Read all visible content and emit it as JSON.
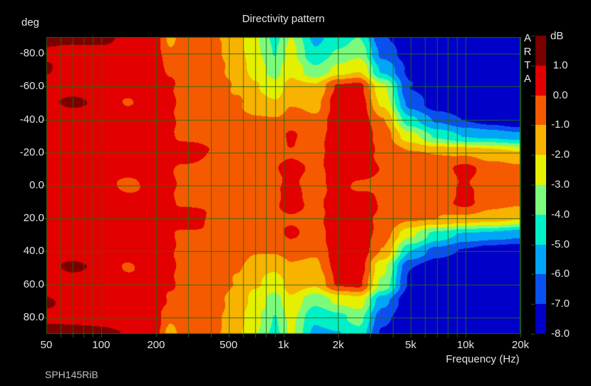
{
  "header": {
    "title": "Directivity pattern"
  },
  "y_axis": {
    "unit_label": "deg",
    "tick_labels": [
      "-80.0",
      "-60.0",
      "-40.0",
      "-20.0",
      "0.0",
      "20.0",
      "40.0",
      "60.0",
      "80.0"
    ],
    "tick_values": [
      -80,
      -60,
      -40,
      -20,
      0,
      20,
      40,
      60,
      80
    ]
  },
  "x_axis": {
    "label": "Frequency (Hz)",
    "tick_labels": [
      "50",
      "100",
      "200",
      "500",
      "1k",
      "2k",
      "5k",
      "10k",
      "20k"
    ],
    "tick_values": [
      50,
      100,
      200,
      500,
      1000,
      2000,
      5000,
      10000,
      20000
    ],
    "scale": "log",
    "min": 50,
    "max": 20000
  },
  "footer": {
    "device_label": "SPH145RiB"
  },
  "watermark": {
    "letters": [
      "A",
      "R",
      "T",
      "A"
    ]
  },
  "colorbar": {
    "unit_label": "dB",
    "tick_labels": [
      "1.0",
      "0.0",
      "-1.0",
      "-2.0",
      "-3.0",
      "-4.0",
      "-5.0",
      "-6.0",
      "-7.0",
      "-8.0"
    ]
  },
  "grid": {
    "line_color": "#226B11",
    "minor_freqs": [
      60,
      70,
      80,
      90,
      100,
      200,
      300,
      400,
      500,
      600,
      700,
      800,
      900,
      1000,
      2000,
      3000,
      4000,
      5000,
      6000,
      7000,
      8000,
      9000,
      10000,
      20000
    ]
  },
  "chart_data": {
    "type": "heatmap",
    "title": "Directivity pattern",
    "xlabel": "Frequency (Hz)",
    "ylabel": "deg",
    "zlabel": "dB",
    "x_scale": "log",
    "x_range": [
      50,
      20000
    ],
    "y_range": [
      -90,
      90
    ],
    "level_edges_db": [
      1,
      0,
      -1,
      -2,
      -3,
      -4,
      -5,
      -6,
      -7,
      -8
    ],
    "level_colors": [
      "#7A0000",
      "#E30000",
      "#F55A00",
      "#F8B200",
      "#E4F000",
      "#7CFA7C",
      "#00F0C8",
      "#00A6F5",
      "#0A50F0",
      "#0000C8"
    ],
    "freqs": [
      50,
      70,
      100,
      140,
      200,
      240,
      280,
      400,
      560,
      700,
      900,
      1100,
      1500,
      2000,
      2600,
      3500,
      5000,
      7000,
      10000,
      14000,
      20000
    ],
    "angles_deg": [
      -90,
      -80,
      -70,
      -60,
      -50,
      -40,
      -30,
      -20,
      -10,
      0,
      10,
      20,
      30,
      40,
      50,
      60,
      70,
      80,
      90
    ],
    "values_db": [
      [
        1.3,
        1.2,
        1.2,
        0.9,
        0.3,
        -1.4,
        -0.5,
        -0.7,
        -1.8,
        -2.9,
        -4.3,
        -2.9,
        -5.3,
        -4.5,
        -4.0,
        -6.8,
        -8,
        -8,
        -8,
        -8,
        -8
      ],
      [
        0.8,
        0.75,
        0.65,
        0.55,
        0.3,
        -0.7,
        -0.4,
        -0.6,
        -1.6,
        -2.7,
        -4.0,
        -2.7,
        -4.8,
        -3.8,
        -3.2,
        -6.2,
        -7.6,
        -8,
        -8,
        -8,
        -8
      ],
      [
        1.1,
        0.6,
        0.55,
        0.5,
        0.3,
        -0.1,
        -0.3,
        -0.5,
        -1.4,
        -2.4,
        -3.4,
        -2.2,
        -3.8,
        -2.6,
        -2.0,
        -5.2,
        -7.2,
        -7.9,
        -8,
        -8,
        -8
      ],
      [
        0.7,
        0.65,
        0.6,
        0.5,
        0.45,
        0.1,
        -0.3,
        -0.4,
        -1.1,
        -1.9,
        -2.6,
        -1.6,
        -1.8,
        0.2,
        0.3,
        -2.8,
        -7.0,
        -7.6,
        -8,
        -8,
        -8
      ],
      [
        0.8,
        1.15,
        0.75,
        -0.1,
        0.5,
        0.15,
        -0.3,
        -0.3,
        -0.9,
        -1.5,
        -1.9,
        -1.1,
        -1.3,
        0.5,
        0.6,
        -2.2,
        -6.4,
        -7.6,
        -8,
        -8,
        -8
      ],
      [
        0.7,
        0.6,
        0.6,
        0.55,
        0.5,
        0.1,
        -0.25,
        -0.2,
        -0.7,
        -0.9,
        -0.9,
        -0.6,
        -0.8,
        0.6,
        0.7,
        -0.9,
        -4.8,
        -6.2,
        -7.0,
        -7.6,
        -8
      ],
      [
        0.7,
        0.65,
        0.6,
        0.55,
        0.5,
        0.15,
        -0.3,
        -0.1,
        -0.5,
        -0.7,
        -0.3,
        0.15,
        -0.5,
        0.7,
        0.8,
        -0.4,
        -2.6,
        -4.2,
        -5.0,
        -5.2,
        -5.6
      ],
      [
        0.6,
        0.6,
        0.55,
        0.5,
        0.45,
        0.1,
        0.85,
        -0.05,
        -0.4,
        -0.5,
        -0.2,
        -0.1,
        -0.4,
        0.8,
        0.5,
        -0.2,
        -0.9,
        -1.0,
        -1.1,
        -1.5,
        -1.9
      ],
      [
        0.55,
        0.55,
        0.5,
        0.45,
        0.4,
        0.1,
        -0.3,
        -0.15,
        -0.3,
        -0.4,
        -0.1,
        0.4,
        -0.3,
        0.6,
        0.9,
        -0.1,
        -0.4,
        -0.5,
        0.3,
        -0.6,
        -0.8
      ],
      [
        0.5,
        0.5,
        0.45,
        -0.3,
        0.35,
        0.15,
        -0.25,
        -0.1,
        -0.25,
        -0.35,
        -0.15,
        0.2,
        -0.5,
        0.5,
        -0.3,
        -0.2,
        -0.3,
        -0.4,
        0.05,
        -0.5,
        -0.7
      ],
      [
        0.55,
        0.55,
        0.5,
        0.45,
        0.4,
        0.1,
        -0.3,
        -0.15,
        -0.3,
        -0.4,
        -0.1,
        0.4,
        -0.3,
        0.6,
        0.9,
        -0.1,
        -0.4,
        -0.5,
        0.3,
        -0.6,
        -0.8
      ],
      [
        0.6,
        0.6,
        0.55,
        0.5,
        0.45,
        0.1,
        0.85,
        -0.05,
        -0.4,
        -0.5,
        -0.2,
        -0.1,
        -0.4,
        0.8,
        0.5,
        -0.2,
        -0.9,
        -1.0,
        -1.2,
        -1.6,
        -2.0
      ],
      [
        0.7,
        0.65,
        0.6,
        0.55,
        0.5,
        0.15,
        -0.3,
        -0.1,
        -0.5,
        -0.7,
        -0.3,
        0.15,
        -0.5,
        0.7,
        0.8,
        -0.5,
        -2.8,
        -4.4,
        -5.2,
        -5.4,
        -5.8
      ],
      [
        0.7,
        0.6,
        0.6,
        0.55,
        0.5,
        0.1,
        -0.25,
        -0.2,
        -0.7,
        -0.9,
        -0.9,
        -0.6,
        -0.8,
        0.6,
        0.7,
        -1.1,
        -5.0,
        -6.4,
        -7.2,
        -7.8,
        -8
      ],
      [
        0.8,
        1.15,
        0.75,
        -0.15,
        0.5,
        0.15,
        -0.3,
        -0.3,
        -0.9,
        -1.5,
        -1.9,
        -1.1,
        -1.3,
        0.4,
        0.5,
        -2.8,
        -7.0,
        -8,
        -8,
        -8,
        -8
      ],
      [
        0.7,
        0.65,
        0.6,
        0.5,
        0.45,
        0.1,
        -0.3,
        -0.4,
        -1.1,
        -1.9,
        -2.6,
        -1.6,
        -1.9,
        0.1,
        0.2,
        -3.2,
        -7.2,
        -7.8,
        -8,
        -8,
        -8
      ],
      [
        1.1,
        0.6,
        0.55,
        0.5,
        0.35,
        -0.1,
        -0.3,
        -0.5,
        -1.4,
        -2.4,
        -3.4,
        -2.2,
        -3.8,
        -2.8,
        -2.4,
        -5.6,
        -7.8,
        -8,
        -8,
        -8,
        -8
      ],
      [
        0.8,
        0.75,
        0.65,
        0.55,
        0.3,
        -0.8,
        -0.4,
        -0.6,
        -1.6,
        -2.7,
        -4.0,
        -2.7,
        -4.8,
        -4.2,
        -3.6,
        -6.6,
        -8,
        -8,
        -8,
        -8,
        -8
      ],
      [
        1.3,
        1.2,
        1.2,
        0.9,
        0.3,
        -1.5,
        -0.5,
        -0.7,
        -1.8,
        -2.9,
        -4.3,
        -2.9,
        -5.3,
        -5.0,
        -4.4,
        -7.2,
        -8,
        -8,
        -8,
        -8,
        -8
      ]
    ]
  }
}
